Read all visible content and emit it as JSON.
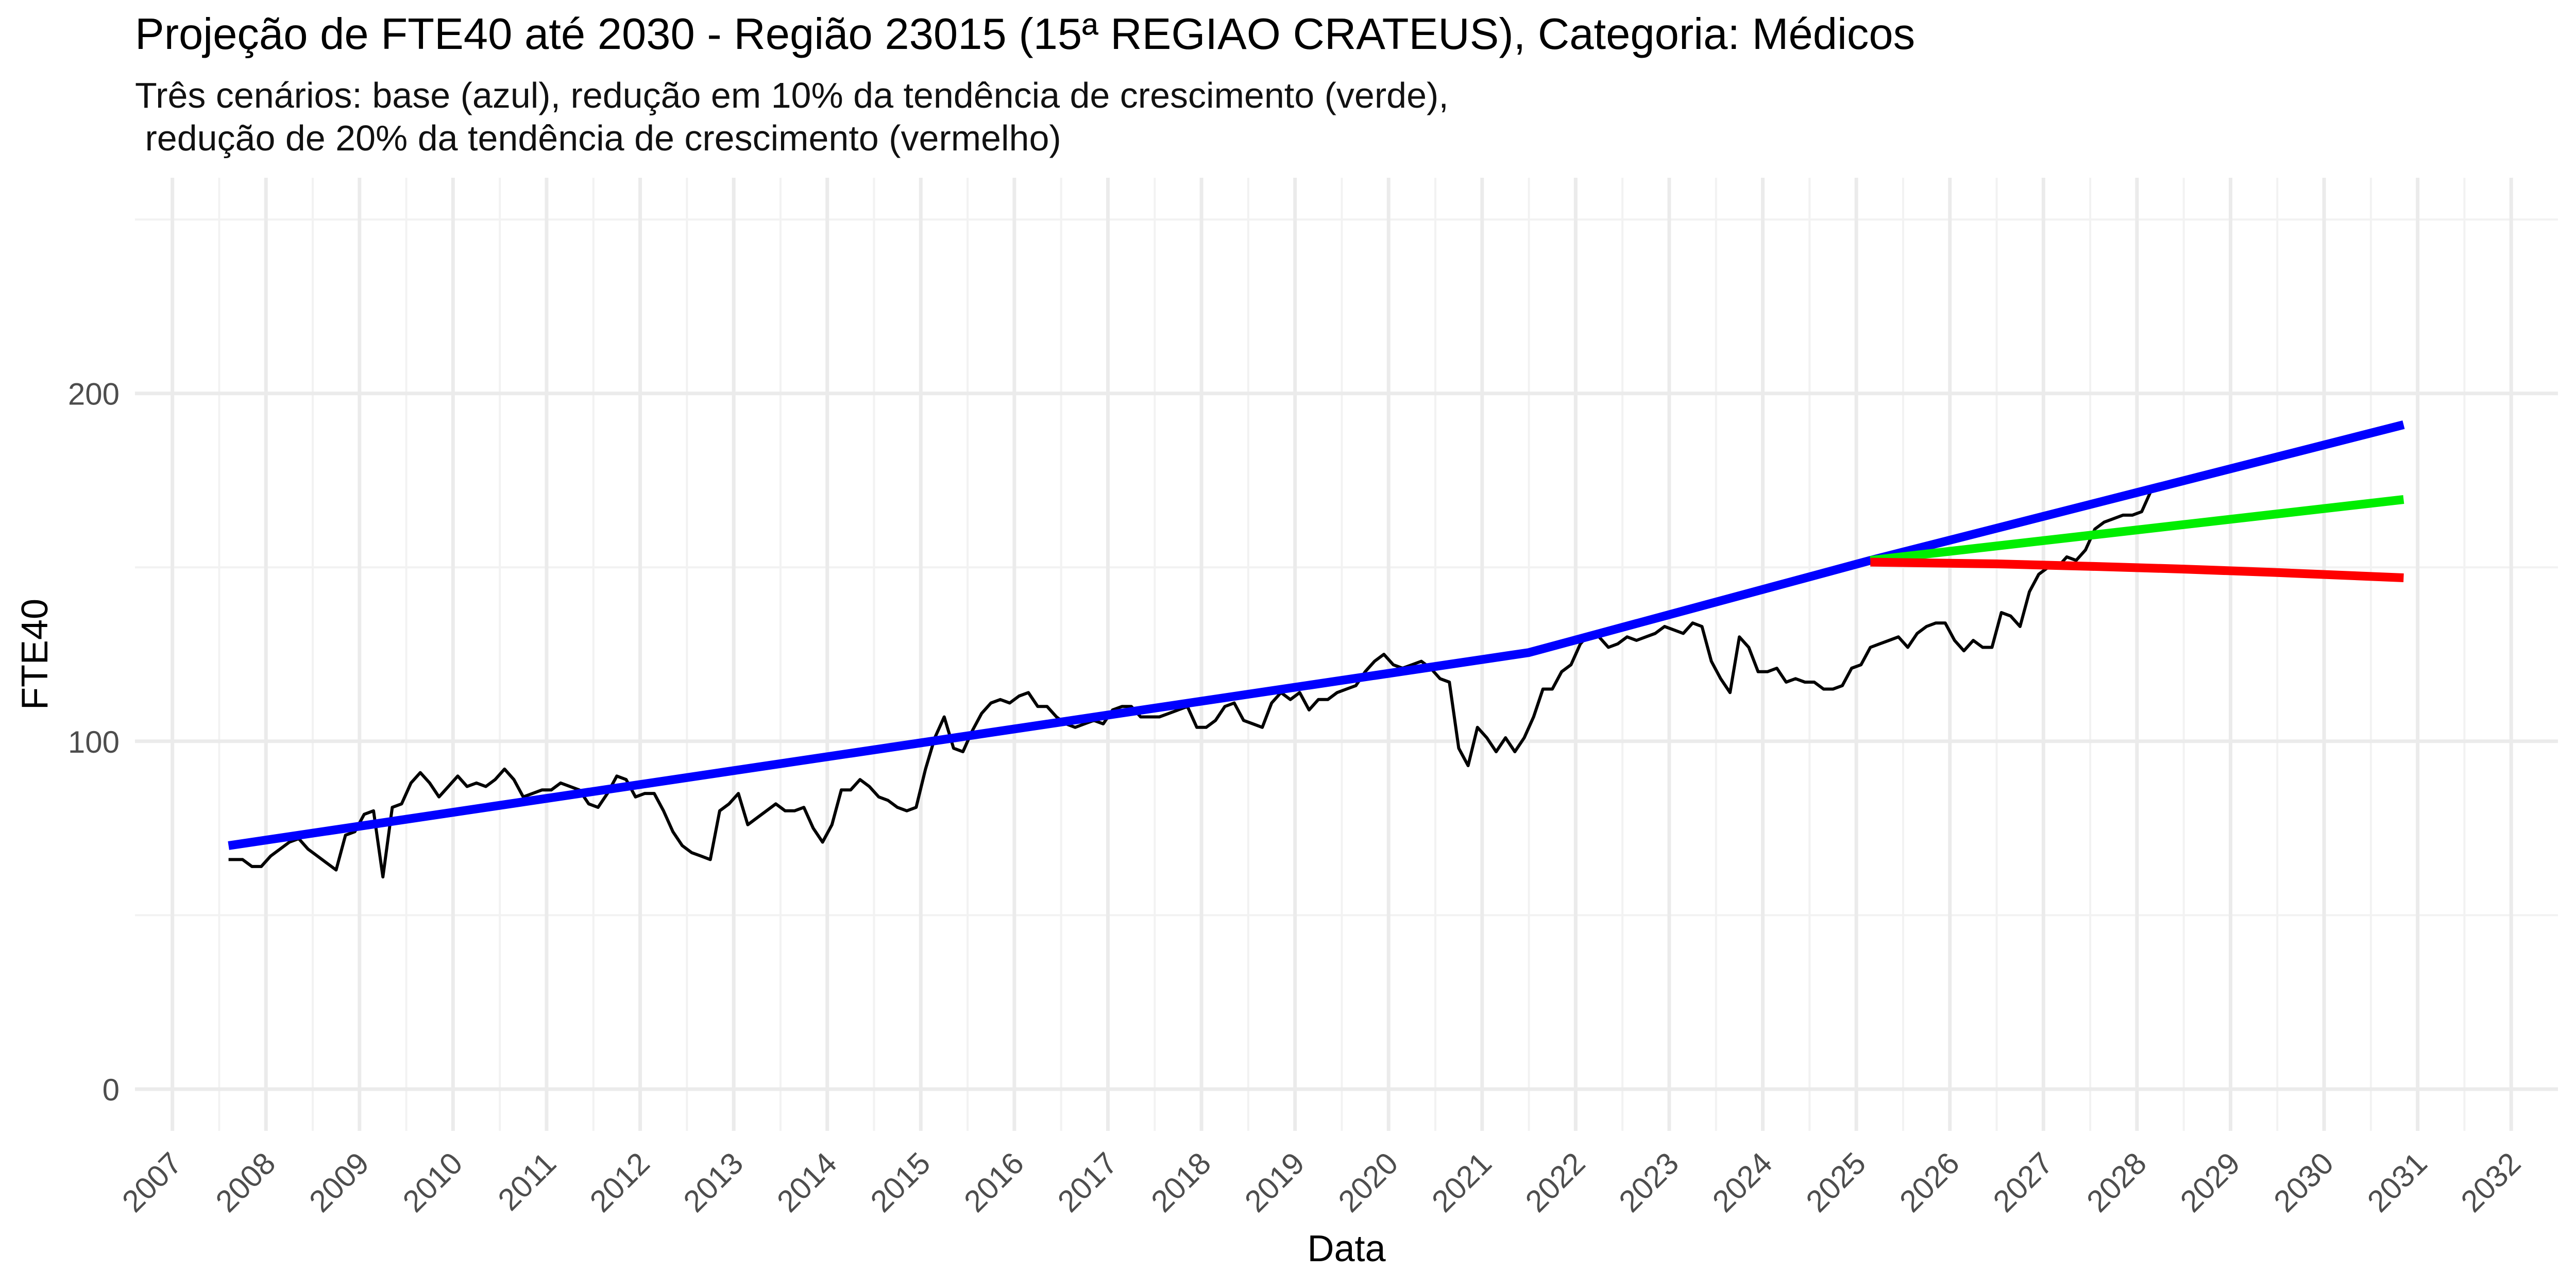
{
  "chart_data": {
    "type": "line",
    "title": "Projeção de FTE40 até 2030 - Região 23015 (15ª REGIAO CRATEUS), Categoria: Médicos",
    "subtitle_lines": [
      "Três cenários: base (azul), redução em 10% da tendência de crescimento (verde),",
      " redução de 20% da tendência de crescimento (vermelho)"
    ],
    "xlabel": "Data",
    "ylabel": "FTE40",
    "xlim": [
      2006.6,
      2032.5
    ],
    "ylim": [
      -12,
      262
    ],
    "x_ticks": [
      "2007",
      "2008",
      "2009",
      "2010",
      "2011",
      "2012",
      "2013",
      "2014",
      "2015",
      "2016",
      "2017",
      "2018",
      "2019",
      "2020",
      "2021",
      "2022",
      "2023",
      "2024",
      "2025",
      "2026",
      "2027",
      "2028",
      "2029",
      "2030",
      "2031",
      "2032"
    ],
    "y_ticks": [
      0,
      100,
      200
    ],
    "grid": true,
    "legend": "none",
    "series": [
      {
        "color": "#000000",
        "points": [
          [
            2007.6,
            66
          ],
          [
            2007.75,
            66
          ],
          [
            2007.85,
            64
          ],
          [
            2007.95,
            64
          ],
          [
            2008.05,
            67
          ],
          [
            2008.15,
            69
          ],
          [
            2008.25,
            71
          ],
          [
            2008.35,
            72
          ],
          [
            2008.45,
            69
          ],
          [
            2008.55,
            67
          ],
          [
            2008.65,
            65
          ],
          [
            2008.75,
            63
          ],
          [
            2008.85,
            73
          ],
          [
            2008.95,
            74
          ],
          [
            2009.05,
            79
          ],
          [
            2009.15,
            80
          ],
          [
            2009.25,
            61
          ],
          [
            2009.35,
            81
          ],
          [
            2009.45,
            82
          ],
          [
            2009.55,
            88
          ],
          [
            2009.65,
            91
          ],
          [
            2009.75,
            88
          ],
          [
            2009.85,
            84
          ],
          [
            2009.95,
            87
          ],
          [
            2010.05,
            90
          ],
          [
            2010.15,
            87
          ],
          [
            2010.25,
            88
          ],
          [
            2010.35,
            87
          ],
          [
            2010.45,
            89
          ],
          [
            2010.55,
            92
          ],
          [
            2010.65,
            89
          ],
          [
            2010.75,
            84
          ],
          [
            2010.85,
            85
          ],
          [
            2010.95,
            86
          ],
          [
            2011.05,
            86
          ],
          [
            2011.15,
            88
          ],
          [
            2011.25,
            87
          ],
          [
            2011.35,
            86
          ],
          [
            2011.45,
            82
          ],
          [
            2011.55,
            81
          ],
          [
            2011.65,
            85
          ],
          [
            2011.75,
            90
          ],
          [
            2011.85,
            89
          ],
          [
            2011.95,
            84
          ],
          [
            2012.05,
            85
          ],
          [
            2012.15,
            85
          ],
          [
            2012.25,
            80
          ],
          [
            2012.35,
            74
          ],
          [
            2012.45,
            70
          ],
          [
            2012.55,
            68
          ],
          [
            2012.65,
            67
          ],
          [
            2012.75,
            66
          ],
          [
            2012.85,
            80
          ],
          [
            2012.95,
            82
          ],
          [
            2013.05,
            85
          ],
          [
            2013.15,
            76
          ],
          [
            2013.25,
            78
          ],
          [
            2013.35,
            80
          ],
          [
            2013.45,
            82
          ],
          [
            2013.55,
            80
          ],
          [
            2013.65,
            80
          ],
          [
            2013.75,
            81
          ],
          [
            2013.85,
            75
          ],
          [
            2013.95,
            71
          ],
          [
            2014.05,
            76
          ],
          [
            2014.15,
            86
          ],
          [
            2014.25,
            86
          ],
          [
            2014.35,
            89
          ],
          [
            2014.45,
            87
          ],
          [
            2014.55,
            84
          ],
          [
            2014.65,
            83
          ],
          [
            2014.75,
            81
          ],
          [
            2014.85,
            80
          ],
          [
            2014.95,
            81
          ],
          [
            2015.05,
            92
          ],
          [
            2015.15,
            101
          ],
          [
            2015.25,
            107
          ],
          [
            2015.35,
            98
          ],
          [
            2015.45,
            97
          ],
          [
            2015.55,
            103
          ],
          [
            2015.65,
            108
          ],
          [
            2015.75,
            111
          ],
          [
            2015.85,
            112
          ],
          [
            2015.95,
            111
          ],
          [
            2016.05,
            113
          ],
          [
            2016.15,
            114
          ],
          [
            2016.25,
            110
          ],
          [
            2016.35,
            110
          ],
          [
            2016.45,
            107
          ],
          [
            2016.55,
            105
          ],
          [
            2016.65,
            104
          ],
          [
            2016.75,
            105
          ],
          [
            2016.85,
            106
          ],
          [
            2016.95,
            105
          ],
          [
            2017.05,
            109
          ],
          [
            2017.15,
            110
          ],
          [
            2017.25,
            110
          ],
          [
            2017.35,
            107
          ],
          [
            2017.45,
            107
          ],
          [
            2017.55,
            107
          ],
          [
            2017.65,
            108
          ],
          [
            2017.75,
            109
          ],
          [
            2017.85,
            110
          ],
          [
            2017.95,
            104
          ],
          [
            2018.05,
            104
          ],
          [
            2018.15,
            106
          ],
          [
            2018.25,
            110
          ],
          [
            2018.35,
            111
          ],
          [
            2018.45,
            106
          ],
          [
            2018.55,
            105
          ],
          [
            2018.65,
            104
          ],
          [
            2018.75,
            111
          ],
          [
            2018.85,
            114
          ],
          [
            2018.95,
            112
          ],
          [
            2019.05,
            114
          ],
          [
            2019.15,
            109
          ],
          [
            2019.25,
            112
          ],
          [
            2019.35,
            112
          ],
          [
            2019.45,
            114
          ],
          [
            2019.55,
            115
          ],
          [
            2019.65,
            116
          ],
          [
            2019.75,
            120
          ],
          [
            2019.85,
            123
          ],
          [
            2019.95,
            125
          ],
          [
            2020.05,
            122
          ],
          [
            2020.15,
            121
          ],
          [
            2020.25,
            122
          ],
          [
            2020.35,
            123
          ],
          [
            2020.45,
            121
          ],
          [
            2020.55,
            118
          ],
          [
            2020.65,
            117
          ],
          [
            2020.75,
            98
          ],
          [
            2020.85,
            93
          ],
          [
            2020.95,
            104
          ],
          [
            2021.05,
            101
          ],
          [
            2021.15,
            97
          ],
          [
            2021.25,
            101
          ],
          [
            2021.35,
            97
          ],
          [
            2021.45,
            101
          ],
          [
            2021.55,
            107
          ],
          [
            2021.65,
            115
          ],
          [
            2021.75,
            115
          ],
          [
            2021.85,
            120
          ],
          [
            2021.95,
            122
          ],
          [
            2022.05,
            128
          ],
          [
            2022.15,
            131
          ],
          [
            2022.25,
            130
          ],
          [
            2022.35,
            127
          ],
          [
            2022.45,
            128
          ],
          [
            2022.55,
            130
          ],
          [
            2022.65,
            129
          ],
          [
            2022.75,
            130
          ],
          [
            2022.85,
            131
          ],
          [
            2022.95,
            133
          ],
          [
            2023.05,
            132
          ],
          [
            2023.15,
            131
          ],
          [
            2023.25,
            134
          ],
          [
            2023.35,
            133
          ],
          [
            2023.45,
            123
          ],
          [
            2023.55,
            118
          ],
          [
            2023.65,
            114
          ],
          [
            2023.75,
            130
          ],
          [
            2023.85,
            127
          ],
          [
            2023.95,
            120
          ],
          [
            2024.05,
            120
          ],
          [
            2024.15,
            121
          ],
          [
            2024.25,
            117
          ],
          [
            2024.35,
            118
          ],
          [
            2024.45,
            117
          ],
          [
            2024.55,
            117
          ],
          [
            2024.65,
            115
          ],
          [
            2024.75,
            115
          ],
          [
            2024.85,
            116
          ],
          [
            2024.95,
            121
          ],
          [
            2025.05,
            122
          ],
          [
            2025.15,
            127
          ],
          [
            2025.25,
            128
          ],
          [
            2025.35,
            129
          ],
          [
            2025.45,
            130
          ],
          [
            2025.55,
            127
          ],
          [
            2025.65,
            131
          ],
          [
            2025.75,
            133
          ],
          [
            2025.85,
            134
          ],
          [
            2025.95,
            134
          ],
          [
            2026.05,
            129
          ],
          [
            2026.15,
            126
          ],
          [
            2026.25,
            129
          ],
          [
            2026.35,
            127
          ],
          [
            2026.45,
            127
          ],
          [
            2026.55,
            137
          ],
          [
            2026.65,
            136
          ],
          [
            2026.75,
            133
          ],
          [
            2026.85,
            143
          ],
          [
            2026.95,
            148
          ],
          [
            2027.05,
            150
          ],
          [
            2027.15,
            150
          ],
          [
            2027.25,
            153
          ],
          [
            2027.35,
            152
          ],
          [
            2027.45,
            155
          ],
          [
            2027.55,
            161
          ],
          [
            2027.65,
            163
          ],
          [
            2027.75,
            164
          ],
          [
            2027.85,
            165
          ],
          [
            2027.95,
            165
          ],
          [
            2028.05,
            166
          ],
          [
            2028.15,
            172
          ],
          [
            2028.25,
            173
          ]
        ]
      },
      {
        "color": "#0000ff",
        "points": [
          [
            2007.6,
            70
          ],
          [
            2021.5,
            125.5
          ],
          [
            2025.15,
            152
          ],
          [
            2030.85,
            191
          ]
        ]
      },
      {
        "color": "#00ee00",
        "points": [
          [
            2025.15,
            152
          ],
          [
            2030.85,
            169.5
          ]
        ]
      },
      {
        "color": "#ff0000",
        "points": [
          [
            2025.15,
            151.5
          ],
          [
            2026.5,
            151
          ],
          [
            2027.5,
            150.3
          ],
          [
            2028.5,
            149.5
          ],
          [
            2029.5,
            148.5
          ],
          [
            2030.85,
            147
          ]
        ]
      }
    ]
  }
}
